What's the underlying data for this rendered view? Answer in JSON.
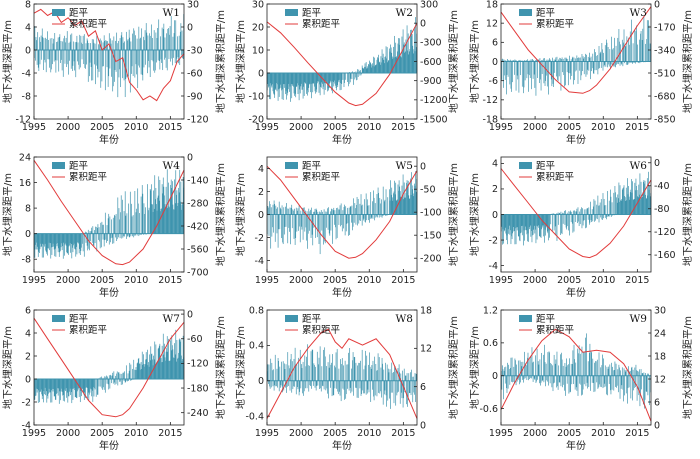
{
  "figure": {
    "x_label": "年份",
    "y_left_label": "地下水埋深距平/m",
    "y_right_label": "地下水埋深累积距平/m",
    "legend_bar": "距平",
    "legend_line": "累积距平",
    "colors": {
      "bar": "#3f94ae",
      "line": "#e23b3b",
      "axis": "#222222"
    }
  },
  "chart_data": [
    {
      "type": "bar+line",
      "name": "W1",
      "x_range": [
        1995,
        2017
      ],
      "x_ticks": [
        1995,
        2000,
        2005,
        2010,
        2015
      ],
      "left": {
        "range": [
          -12,
          8
        ],
        "ticks": [
          8,
          4,
          0,
          -4,
          -8,
          -12
        ]
      },
      "right": {
        "range": [
          -120,
          30
        ],
        "ticks": [
          30,
          0,
          -30,
          -60,
          -90,
          -120
        ]
      },
      "anomaly_envelope": [
        [
          1995,
          4.5,
          -4
        ],
        [
          1998,
          3,
          -4.5
        ],
        [
          2000,
          3.5,
          -5
        ],
        [
          2002,
          3,
          -4.5
        ],
        [
          2004,
          2.5,
          -7
        ],
        [
          2006,
          3,
          -8
        ],
        [
          2008,
          3.5,
          -9
        ],
        [
          2010,
          4.5,
          -7
        ],
        [
          2012,
          5,
          -5
        ],
        [
          2014,
          5.5,
          -4
        ],
        [
          2016,
          6.5,
          -3
        ],
        [
          2017,
          7,
          -2
        ]
      ],
      "cumulative": [
        [
          1995,
          18
        ],
        [
          1996,
          23
        ],
        [
          1997,
          15
        ],
        [
          1998,
          20
        ],
        [
          1999,
          6
        ],
        [
          2000,
          12
        ],
        [
          2001,
          2
        ],
        [
          2002,
          8
        ],
        [
          2003,
          -12
        ],
        [
          2004,
          -5
        ],
        [
          2005,
          -30
        ],
        [
          2006,
          -22
        ],
        [
          2007,
          -45
        ],
        [
          2008,
          -40
        ],
        [
          2009,
          -72
        ],
        [
          2010,
          -82
        ],
        [
          2011,
          -95
        ],
        [
          2012,
          -90
        ],
        [
          2013,
          -96
        ],
        [
          2014,
          -80
        ],
        [
          2015,
          -70
        ],
        [
          2016,
          -45
        ],
        [
          2017,
          -35
        ]
      ]
    },
    {
      "type": "bar+line",
      "name": "W2",
      "x_range": [
        1995,
        2017
      ],
      "x_ticks": [
        1995,
        2000,
        2005,
        2010,
        2015
      ],
      "left": {
        "range": [
          -20,
          30
        ],
        "ticks": [
          30,
          20,
          10,
          0,
          -10,
          -20
        ]
      },
      "right": {
        "range": [
          -1500,
          300
        ],
        "ticks": [
          300,
          0,
          -300,
          -600,
          -900,
          -1200,
          -1500
        ]
      },
      "anomaly_envelope": [
        [
          1995,
          0,
          -12
        ],
        [
          1998,
          0,
          -13
        ],
        [
          2000,
          0,
          -12
        ],
        [
          2003,
          0,
          -10
        ],
        [
          2006,
          0,
          -8
        ],
        [
          2008,
          1,
          -5
        ],
        [
          2009,
          4,
          0
        ],
        [
          2011,
          8,
          0
        ],
        [
          2013,
          14,
          0
        ],
        [
          2015,
          20,
          0
        ],
        [
          2017,
          25,
          0
        ]
      ],
      "cumulative": [
        [
          1995,
          20
        ],
        [
          1997,
          -150
        ],
        [
          1999,
          -380
        ],
        [
          2001,
          -620
        ],
        [
          2003,
          -850
        ],
        [
          2005,
          -1080
        ],
        [
          2007,
          -1250
        ],
        [
          2008,
          -1290
        ],
        [
          2009,
          -1270
        ],
        [
          2011,
          -1100
        ],
        [
          2013,
          -800
        ],
        [
          2015,
          -400
        ],
        [
          2017,
          0
        ]
      ]
    },
    {
      "type": "bar+line",
      "name": "W3",
      "x_range": [
        1995,
        2017
      ],
      "x_ticks": [
        1995,
        2000,
        2005,
        2010,
        2015
      ],
      "left": {
        "range": [
          -18,
          18
        ],
        "ticks": [
          18,
          12,
          6,
          0,
          -6,
          -12,
          -18
        ]
      },
      "right": {
        "range": [
          -850,
          0
        ],
        "ticks": [
          0,
          -170,
          -340,
          -510,
          -680,
          -850
        ]
      },
      "anomaly_envelope": [
        [
          1995,
          1,
          -11
        ],
        [
          1998,
          0.5,
          -11
        ],
        [
          2000,
          1,
          -11
        ],
        [
          2003,
          1.5,
          -10
        ],
        [
          2006,
          2,
          -8
        ],
        [
          2008,
          3,
          -6
        ],
        [
          2010,
          7,
          -3
        ],
        [
          2012,
          10,
          -2
        ],
        [
          2014,
          13,
          -1
        ],
        [
          2017,
          16,
          0
        ]
      ],
      "cumulative": [
        [
          1995,
          -60
        ],
        [
          1997,
          -200
        ],
        [
          1999,
          -340
        ],
        [
          2001,
          -450
        ],
        [
          2003,
          -560
        ],
        [
          2005,
          -650
        ],
        [
          2007,
          -660
        ],
        [
          2008,
          -640
        ],
        [
          2009,
          -600
        ],
        [
          2011,
          -480
        ],
        [
          2013,
          -320
        ],
        [
          2015,
          -160
        ],
        [
          2017,
          -20
        ]
      ]
    },
    {
      "type": "bar+line",
      "name": "W4",
      "x_range": [
        1995,
        2017
      ],
      "x_ticks": [
        1995,
        2000,
        2005,
        2010,
        2015
      ],
      "left": {
        "range": [
          -12,
          24
        ],
        "ticks": [
          24,
          16,
          8,
          0,
          -8
        ]
      },
      "right": {
        "range": [
          -700,
          0
        ],
        "ticks": [
          0,
          -140,
          -280,
          -420,
          -560,
          -700
        ]
      },
      "anomaly_envelope": [
        [
          1995,
          0,
          -8
        ],
        [
          1998,
          0,
          -8
        ],
        [
          2000,
          0,
          -8
        ],
        [
          2002,
          0,
          -7.5
        ],
        [
          2004,
          3,
          -6
        ],
        [
          2006,
          8,
          -4
        ],
        [
          2008,
          14,
          -2
        ],
        [
          2010,
          16,
          -1
        ],
        [
          2012,
          18,
          0
        ],
        [
          2014,
          20,
          0
        ],
        [
          2017,
          21,
          0
        ]
      ],
      "cumulative": [
        [
          1995,
          -20
        ],
        [
          1997,
          -140
        ],
        [
          1999,
          -270
        ],
        [
          2001,
          -390
        ],
        [
          2003,
          -510
        ],
        [
          2005,
          -600
        ],
        [
          2007,
          -650
        ],
        [
          2008,
          -655
        ],
        [
          2009,
          -640
        ],
        [
          2011,
          -560
        ],
        [
          2013,
          -420
        ],
        [
          2015,
          -250
        ],
        [
          2017,
          -80
        ]
      ]
    },
    {
      "type": "bar+line",
      "name": "W5",
      "x_range": [
        1995,
        2017
      ],
      "x_ticks": [
        1995,
        2000,
        2005,
        2010,
        2015
      ],
      "left": {
        "range": [
          -5,
          5
        ],
        "ticks": [
          4,
          2,
          0,
          -2,
          -4
        ]
      },
      "right": {
        "range": [
          -230,
          20
        ],
        "ticks": [
          0,
          -50,
          -100,
          -150,
          -200
        ]
      },
      "anomaly_envelope": [
        [
          1995,
          1.5,
          -3.2
        ],
        [
          1998,
          1,
          -3
        ],
        [
          2000,
          0.8,
          -2.8
        ],
        [
          2003,
          0.5,
          -3.5
        ],
        [
          2005,
          0.8,
          -2.5
        ],
        [
          2007,
          1.2,
          -2
        ],
        [
          2009,
          2,
          -1
        ],
        [
          2011,
          2.5,
          -0.5
        ],
        [
          2013,
          3,
          0
        ],
        [
          2015,
          3.5,
          0
        ],
        [
          2017,
          4,
          0
        ]
      ],
      "cumulative": [
        [
          1995,
          0
        ],
        [
          1997,
          -30
        ],
        [
          1999,
          -70
        ],
        [
          2001,
          -110
        ],
        [
          2003,
          -150
        ],
        [
          2005,
          -185
        ],
        [
          2007,
          -200
        ],
        [
          2008,
          -198
        ],
        [
          2009,
          -190
        ],
        [
          2011,
          -160
        ],
        [
          2013,
          -120
        ],
        [
          2015,
          -60
        ],
        [
          2017,
          -10
        ]
      ]
    },
    {
      "type": "bar+line",
      "name": "W6",
      "x_range": [
        1995,
        2017
      ],
      "x_ticks": [
        1995,
        2000,
        2005,
        2010,
        2015
      ],
      "left": {
        "range": [
          -4.5,
          4.5
        ],
        "ticks": [
          4,
          2,
          0,
          -2,
          -4
        ]
      },
      "right": {
        "range": [
          -190,
          10
        ],
        "ticks": [
          0,
          -40,
          -80,
          -120,
          -160
        ]
      },
      "anomaly_envelope": [
        [
          1995,
          0,
          -2.5
        ],
        [
          1998,
          0,
          -2.5
        ],
        [
          2000,
          0,
          -2.3
        ],
        [
          2002,
          0,
          -2.2
        ],
        [
          2004,
          0.3,
          -2
        ],
        [
          2006,
          0.5,
          -1.5
        ],
        [
          2008,
          1,
          -1
        ],
        [
          2010,
          2,
          -0.5
        ],
        [
          2012,
          2.5,
          0
        ],
        [
          2014,
          3,
          0
        ],
        [
          2017,
          3.5,
          0
        ]
      ],
      "cumulative": [
        [
          1995,
          -10
        ],
        [
          1997,
          -40
        ],
        [
          1999,
          -70
        ],
        [
          2001,
          -100
        ],
        [
          2003,
          -125
        ],
        [
          2005,
          -150
        ],
        [
          2007,
          -163
        ],
        [
          2008,
          -165
        ],
        [
          2009,
          -160
        ],
        [
          2011,
          -140
        ],
        [
          2013,
          -110
        ],
        [
          2015,
          -70
        ],
        [
          2017,
          -30
        ]
      ]
    },
    {
      "type": "bar+line",
      "name": "W7",
      "x_range": [
        1995,
        2017
      ],
      "x_ticks": [
        1995,
        2000,
        2005,
        2010,
        2015
      ],
      "left": {
        "range": [
          -4,
          6
        ],
        "ticks": [
          6,
          4,
          2,
          0,
          -2,
          -4
        ]
      },
      "right": {
        "range": [
          -270,
          10
        ],
        "ticks": [
          0,
          -60,
          -120,
          -180,
          -240
        ]
      },
      "anomaly_envelope": [
        [
          1995,
          0,
          -2.2
        ],
        [
          1998,
          0,
          -2.2
        ],
        [
          2000,
          0,
          -2.2
        ],
        [
          2002,
          0,
          -2
        ],
        [
          2004,
          0,
          -2
        ],
        [
          2006,
          0.5,
          -1
        ],
        [
          2008,
          1,
          -0.5
        ],
        [
          2010,
          2,
          0
        ],
        [
          2012,
          3,
          0
        ],
        [
          2014,
          4,
          0
        ],
        [
          2017,
          4.5,
          0
        ]
      ],
      "cumulative": [
        [
          1995,
          -10
        ],
        [
          1997,
          -60
        ],
        [
          1999,
          -110
        ],
        [
          2001,
          -160
        ],
        [
          2003,
          -210
        ],
        [
          2005,
          -245
        ],
        [
          2007,
          -250
        ],
        [
          2008,
          -245
        ],
        [
          2009,
          -230
        ],
        [
          2011,
          -180
        ],
        [
          2013,
          -120
        ],
        [
          2015,
          -60
        ],
        [
          2017,
          -20
        ]
      ]
    },
    {
      "type": "bar+line",
      "name": "W8",
      "x_range": [
        1995,
        2017
      ],
      "x_ticks": [
        1995,
        2000,
        2005,
        2010,
        2015
      ],
      "left": {
        "range": [
          -0.5,
          0.8
        ],
        "ticks": [
          0.8,
          0.4,
          0,
          -0.4
        ]
      },
      "right": {
        "range": [
          0,
          18
        ],
        "ticks": [
          18,
          12,
          6,
          0
        ]
      },
      "anomaly_envelope": [
        [
          1995,
          0.3,
          -0.1
        ],
        [
          1998,
          0.35,
          -0.15
        ],
        [
          2000,
          0.4,
          -0.2
        ],
        [
          2002,
          0.45,
          -0.1
        ],
        [
          2004,
          0.4,
          -0.2
        ],
        [
          2006,
          0.35,
          -0.25
        ],
        [
          2008,
          0.4,
          -0.2
        ],
        [
          2010,
          0.35,
          -0.25
        ],
        [
          2012,
          0.3,
          -0.3
        ],
        [
          2014,
          0.2,
          -0.35
        ],
        [
          2017,
          0.1,
          -0.3
        ]
      ],
      "cumulative": [
        [
          1995,
          1
        ],
        [
          1997,
          5
        ],
        [
          1999,
          9
        ],
        [
          2001,
          12
        ],
        [
          2003,
          14.5
        ],
        [
          2004,
          15
        ],
        [
          2005,
          13
        ],
        [
          2006,
          12
        ],
        [
          2007,
          13.5
        ],
        [
          2009,
          12.5
        ],
        [
          2011,
          13.5
        ],
        [
          2013,
          11
        ],
        [
          2015,
          6
        ],
        [
          2017,
          1
        ]
      ]
    },
    {
      "type": "bar+line",
      "name": "W9",
      "x_range": [
        1995,
        2017
      ],
      "x_ticks": [
        1995,
        2000,
        2005,
        2010,
        2015
      ],
      "left": {
        "range": [
          -0.9,
          1.2
        ],
        "ticks": [
          1.2,
          0.6,
          0,
          -0.6
        ]
      },
      "right": {
        "range": [
          0,
          30
        ],
        "ticks": [
          30,
          24,
          18,
          12,
          6,
          0
        ]
      },
      "anomaly_envelope": [
        [
          1995,
          0.2,
          -0.5
        ],
        [
          1997,
          0.4,
          -0.2
        ],
        [
          1999,
          0.5,
          -0.1
        ],
        [
          2001,
          0.6,
          -0.2
        ],
        [
          2003,
          0.5,
          -0.3
        ],
        [
          2005,
          0.4,
          -0.4
        ],
        [
          2007,
          0.9,
          -0.4
        ],
        [
          2009,
          0.5,
          -0.3
        ],
        [
          2011,
          0.3,
          -0.4
        ],
        [
          2013,
          0.2,
          -0.5
        ],
        [
          2015,
          0.2,
          -0.6
        ],
        [
          2017,
          0,
          -0.7
        ]
      ],
      "cumulative": [
        [
          1995,
          4
        ],
        [
          1997,
          11
        ],
        [
          1999,
          17
        ],
        [
          2001,
          22
        ],
        [
          2003,
          25
        ],
        [
          2005,
          23
        ],
        [
          2006,
          21
        ],
        [
          2007,
          19
        ],
        [
          2009,
          19.5
        ],
        [
          2011,
          19
        ],
        [
          2013,
          16
        ],
        [
          2015,
          10
        ],
        [
          2017,
          1
        ]
      ]
    }
  ]
}
